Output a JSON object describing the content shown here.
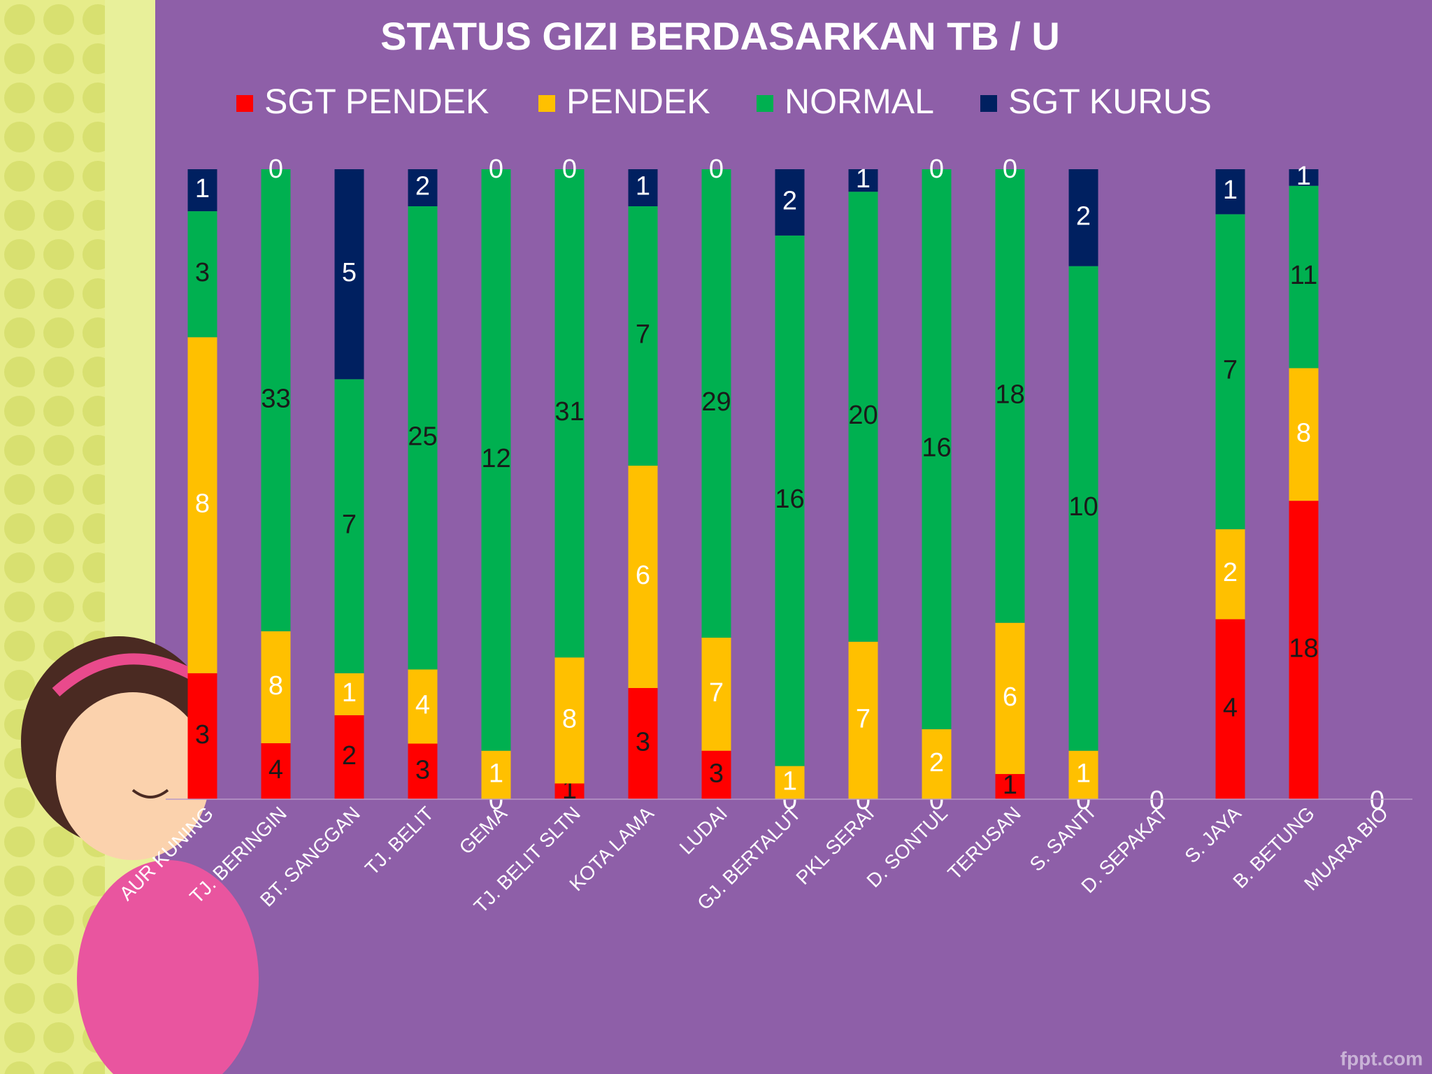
{
  "chart_data": {
    "type": "stacked_percent_bar",
    "title": "STATUS GIZI BERDASARKAN  TB / U",
    "categories": [
      "AUR KUNING",
      "TJ. BERINGIN",
      "BT. SANGGAN",
      "TJ. BELIT",
      "GEMA",
      "TJ. BELIT SLTN",
      "KOTA LAMA",
      "LUDAI",
      "GJ. BERTALUT",
      "PKL SERAI",
      "D. SONTUL",
      "TERUSAN",
      "S. SANTI",
      "D. SEPAKAT",
      "S. JAYA",
      "B. BETUNG",
      "MUARA BIO"
    ],
    "series": [
      {
        "name": "SGT PENDEK",
        "color": "#ff0000",
        "values": [
          3,
          4,
          2,
          3,
          0,
          1,
          3,
          3,
          0,
          0,
          0,
          1,
          0,
          0,
          4,
          18,
          0
        ]
      },
      {
        "name": "PENDEK",
        "color": "#ffc000",
        "values": [
          8,
          8,
          1,
          4,
          1,
          8,
          6,
          7,
          1,
          7,
          2,
          6,
          1,
          null,
          2,
          8,
          null
        ]
      },
      {
        "name": "NORMAL",
        "color": "#00b050",
        "values": [
          3,
          33,
          7,
          25,
          12,
          31,
          7,
          29,
          16,
          20,
          16,
          18,
          10,
          null,
          7,
          11,
          null
        ]
      },
      {
        "name": "SGT KURUS",
        "color": "#002060",
        "values": [
          1,
          0,
          5,
          2,
          0,
          0,
          1,
          0,
          2,
          1,
          0,
          0,
          2,
          null,
          1,
          1,
          null
        ]
      }
    ],
    "legend": "top",
    "watermark": "fppt.com"
  }
}
